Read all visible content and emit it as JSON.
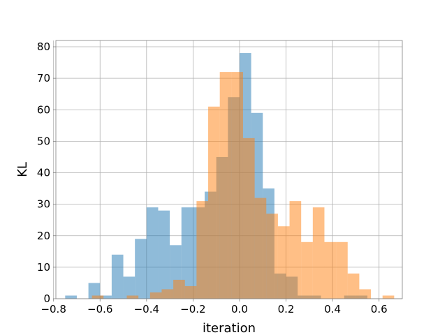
{
  "chart_data": {
    "type": "bar",
    "title": "",
    "xlabel": "iteration",
    "ylabel": "KL",
    "xlim": [
      -0.79,
      0.7
    ],
    "ylim": [
      0,
      82
    ],
    "xticks": [
      -0.8,
      -0.6,
      -0.4,
      -0.2,
      0.0,
      0.2,
      0.4,
      0.6
    ],
    "xtick_labels": [
      "−0.8",
      "−0.6",
      "−0.4",
      "−0.2",
      "0.0",
      "0.2",
      "0.4",
      "0.6"
    ],
    "yticks": [
      0,
      10,
      20,
      30,
      40,
      50,
      60,
      70,
      80
    ],
    "ytick_labels": [
      "0",
      "10",
      "20",
      "30",
      "40",
      "50",
      "60",
      "70",
      "80"
    ],
    "grid": true,
    "series": [
      {
        "color": "#1f77b4",
        "alpha": 0.5,
        "bin_edges": [
          -0.75,
          -0.7,
          -0.65,
          -0.6,
          -0.55,
          -0.5,
          -0.45,
          -0.4,
          -0.35,
          -0.3,
          -0.25,
          -0.2,
          -0.15,
          -0.1,
          -0.05,
          0.0,
          0.05,
          0.1,
          0.15,
          0.2,
          0.25,
          0.3,
          0.35,
          0.4,
          0.45,
          0.5,
          0.55
        ],
        "counts": [
          1,
          0,
          5,
          1,
          14,
          7,
          19,
          29,
          28,
          17,
          29,
          29,
          34,
          45,
          64,
          78,
          59,
          35,
          8,
          7,
          1,
          1,
          0,
          0,
          1,
          1
        ]
      },
      {
        "color": "#ff7f0e",
        "alpha": 0.5,
        "bin_edges": [
          -0.635,
          -0.585,
          -0.535,
          -0.485,
          -0.435,
          -0.385,
          -0.335,
          -0.285,
          -0.235,
          -0.185,
          -0.135,
          -0.085,
          -0.035,
          0.015,
          0.065,
          0.115,
          0.165,
          0.215,
          0.265,
          0.315,
          0.365,
          0.415,
          0.465,
          0.515,
          0.565,
          0.615,
          0.665
        ],
        "counts": [
          1,
          0,
          0,
          1,
          0,
          2,
          3,
          6,
          4,
          31,
          61,
          72,
          72,
          51,
          32,
          27,
          23,
          31,
          18,
          29,
          18,
          18,
          8,
          3,
          0,
          1
        ]
      }
    ]
  }
}
